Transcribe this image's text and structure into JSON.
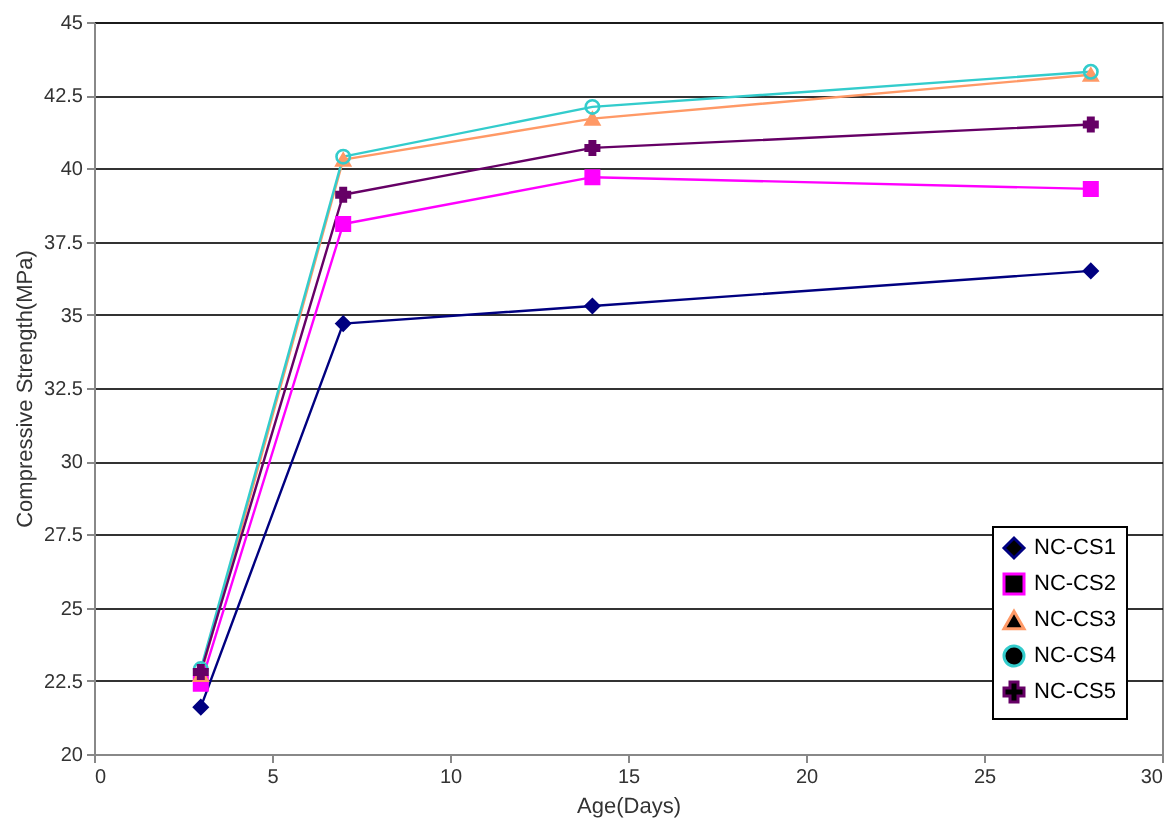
{
  "chart_data": {
    "type": "line",
    "xlabel": "Age(Days)",
    "ylabel": "Compressive Strength(MPa)",
    "x": [
      3,
      7,
      14,
      28
    ],
    "series": [
      {
        "name": "NC-CS1",
        "color": "#000080",
        "marker": "diamond",
        "values": [
          21.6,
          34.7,
          35.3,
          36.5
        ]
      },
      {
        "name": "NC-CS2",
        "color": "#ff00ff",
        "marker": "square",
        "values": [
          22.4,
          38.1,
          39.7,
          39.3
        ]
      },
      {
        "name": "NC-CS3",
        "color": "#ff9966",
        "marker": "triangle",
        "values": [
          22.7,
          40.3,
          41.7,
          43.2
        ]
      },
      {
        "name": "NC-CS4",
        "color": "#33cccc",
        "marker": "circle",
        "values": [
          22.9,
          40.4,
          42.1,
          43.3
        ]
      },
      {
        "name": "NC-CS5",
        "color": "#660066",
        "marker": "cross",
        "values": [
          22.8,
          39.1,
          40.7,
          41.5
        ]
      }
    ],
    "xlim": [
      0,
      30
    ],
    "xticks": [
      0,
      5,
      10,
      15,
      20,
      25,
      30
    ],
    "ylim": [
      20,
      45
    ],
    "yticks": [
      20,
      22.5,
      25,
      27.5,
      30,
      32.5,
      35,
      37.5,
      40,
      42.5,
      45
    ],
    "grid": "y",
    "legend": "bottom right"
  }
}
